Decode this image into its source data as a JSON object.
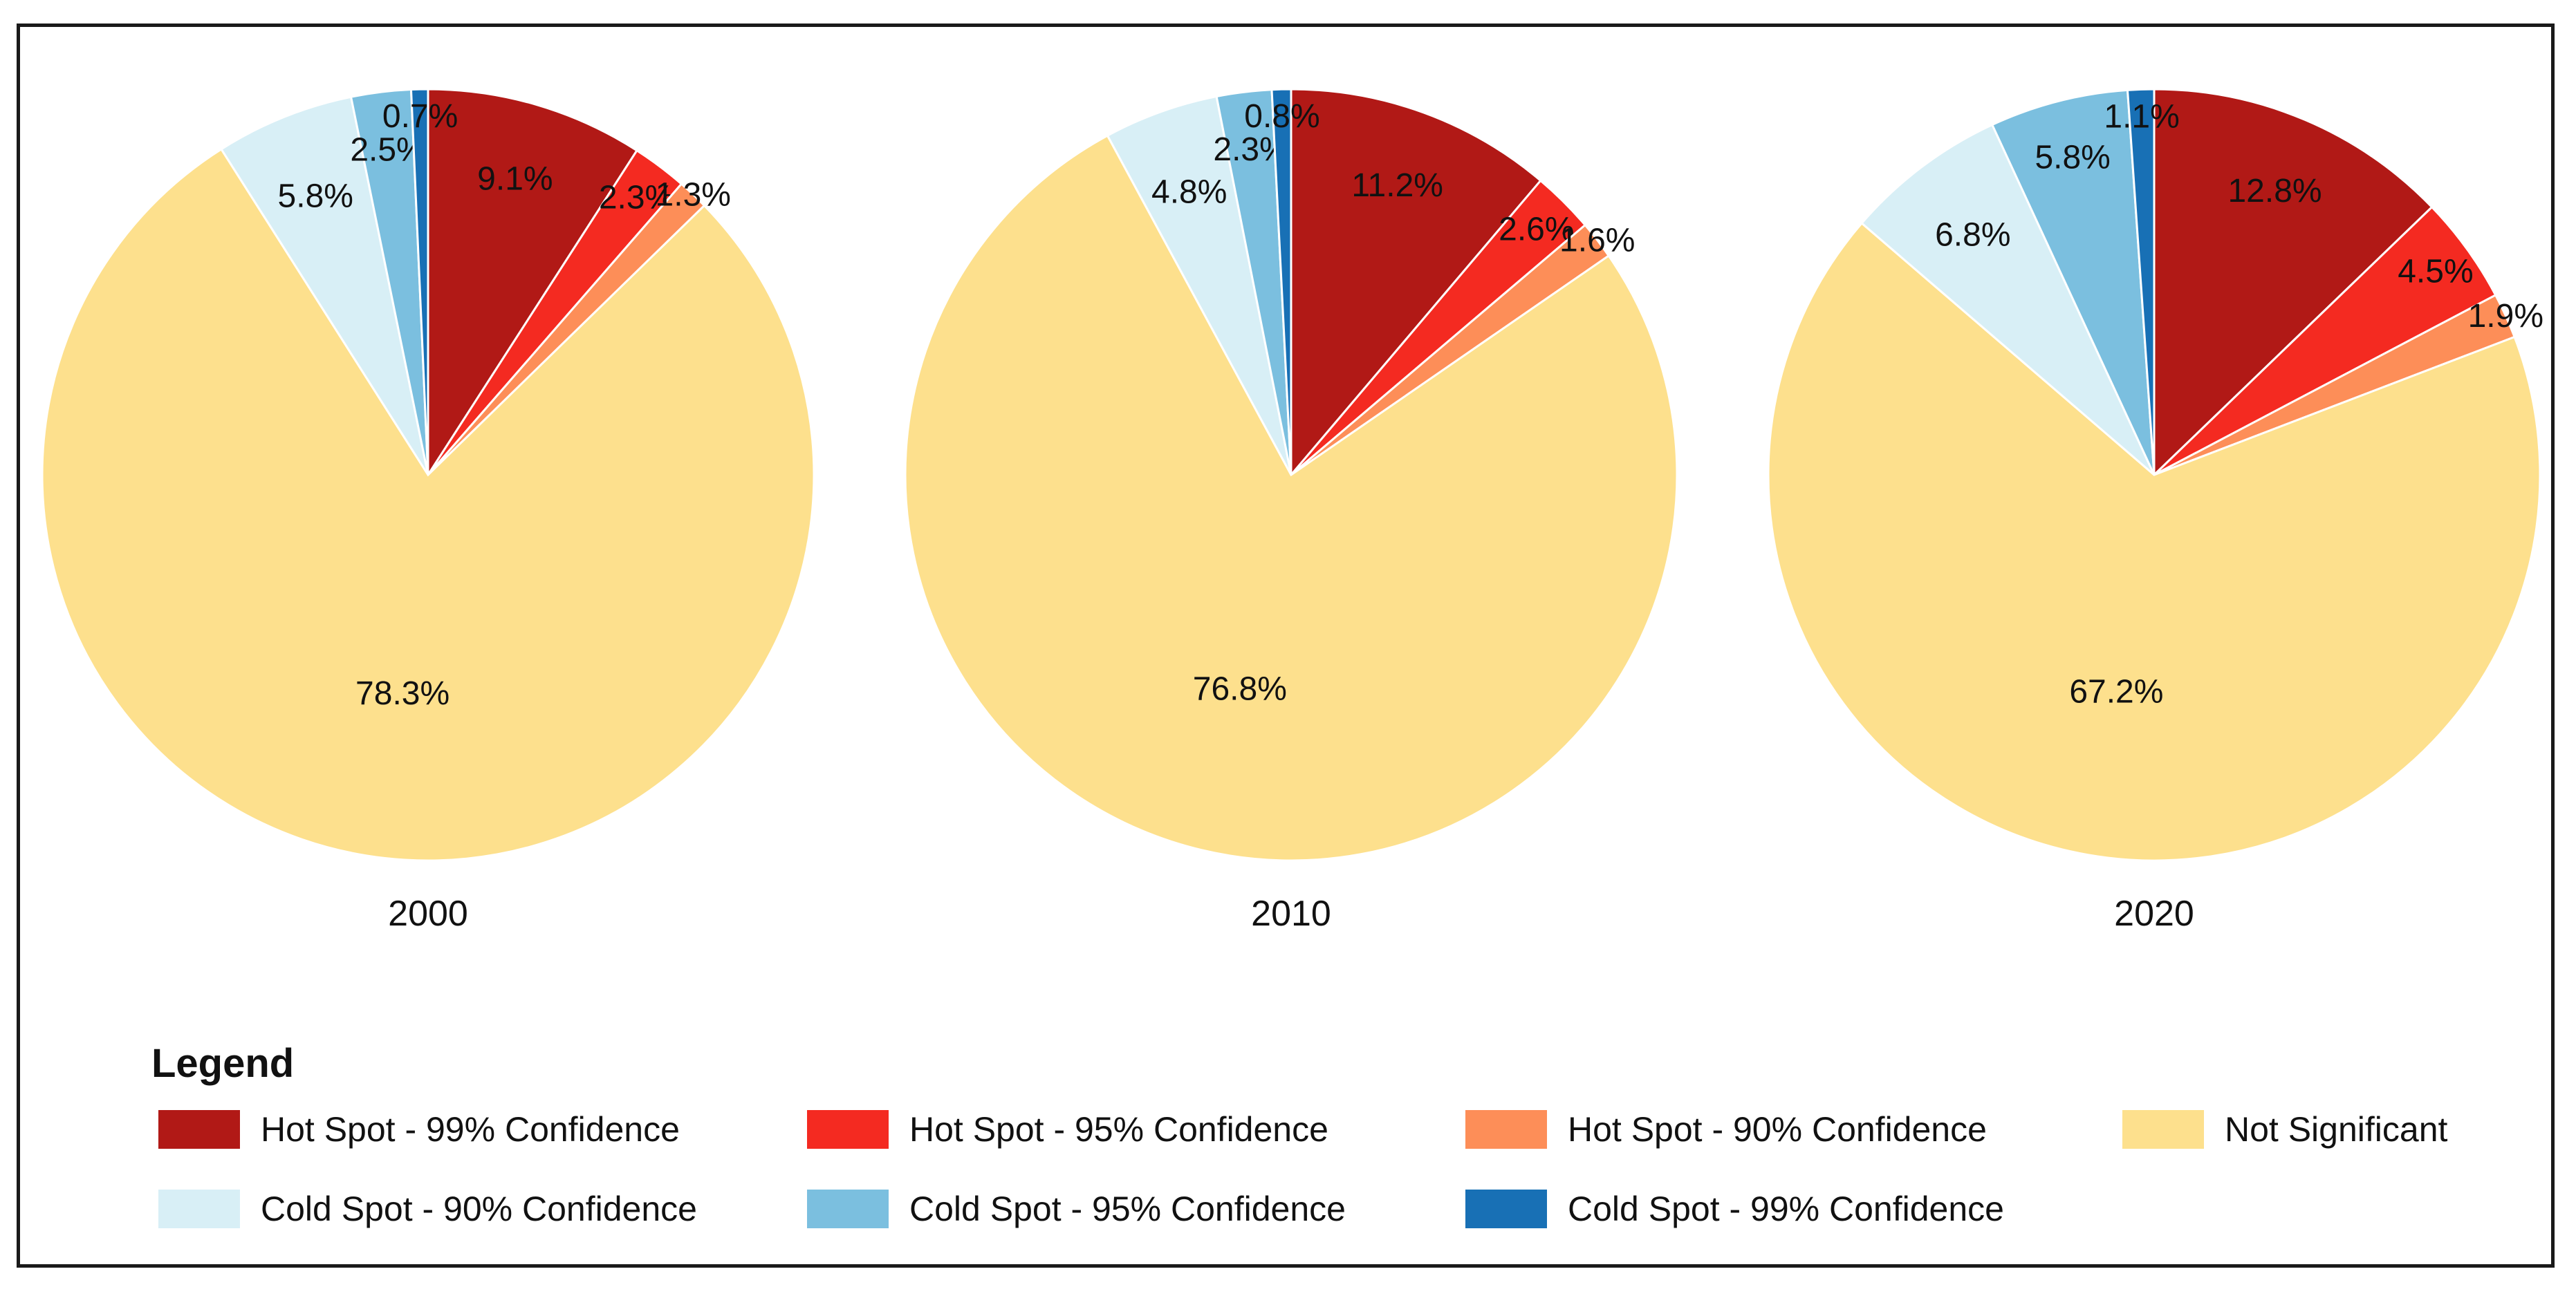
{
  "legend": {
    "title": "Legend",
    "items": [
      {
        "label": "Hot Spot - 99% Confidence",
        "color": "#b11916"
      },
      {
        "label": "Hot Spot - 95% Confidence",
        "color": "#f42a21"
      },
      {
        "label": "Hot Spot - 90% Confidence",
        "color": "#fd8e58"
      },
      {
        "label": "Not Significant",
        "color": "#fde08d"
      },
      {
        "label": "Cold Spot - 90% Confidence",
        "color": "#d8eff6"
      },
      {
        "label": "Cold Spot - 95% Confidence",
        "color": "#7bbfdf"
      },
      {
        "label": "Cold Spot - 99% Confidence",
        "color": "#1870b5"
      }
    ]
  },
  "chart_data": [
    {
      "type": "pie",
      "title": "2000",
      "categories": [
        "Hot Spot - 99% Confidence",
        "Hot Spot - 95% Confidence",
        "Hot Spot - 90% Confidence",
        "Not Significant",
        "Cold Spot - 90% Confidence",
        "Cold Spot - 95% Confidence",
        "Cold Spot - 99% Confidence"
      ],
      "values": [
        9.1,
        2.3,
        1.3,
        78.3,
        5.8,
        2.5,
        0.7
      ],
      "labels": [
        "9.1%",
        "2.3%",
        "1.3%",
        "78.3%",
        "5.8%",
        "2.5%",
        "0.7%"
      ]
    },
    {
      "type": "pie",
      "title": "2010",
      "categories": [
        "Hot Spot - 99% Confidence",
        "Hot Spot - 95% Confidence",
        "Hot Spot - 90% Confidence",
        "Not Significant",
        "Cold Spot - 90% Confidence",
        "Cold Spot - 95% Confidence",
        "Cold Spot - 99% Confidence"
      ],
      "values": [
        11.2,
        2.6,
        1.6,
        76.8,
        4.8,
        2.3,
        0.8
      ],
      "labels": [
        "11.2%",
        "2.6%",
        "1.6%",
        "76.8%",
        "4.8%",
        "2.3%",
        "0.8%"
      ]
    },
    {
      "type": "pie",
      "title": "2020",
      "categories": [
        "Hot Spot - 99% Confidence",
        "Hot Spot - 95% Confidence",
        "Hot Spot - 90% Confidence",
        "Not Significant",
        "Cold Spot - 90% Confidence",
        "Cold Spot - 95% Confidence",
        "Cold Spot - 99% Confidence"
      ],
      "values": [
        12.8,
        4.5,
        1.9,
        67.2,
        6.8,
        5.8,
        1.1
      ],
      "labels": [
        "12.8%",
        "4.5%",
        "1.9%",
        "67.2%",
        "6.8%",
        "5.8%",
        "1.1%"
      ]
    }
  ]
}
